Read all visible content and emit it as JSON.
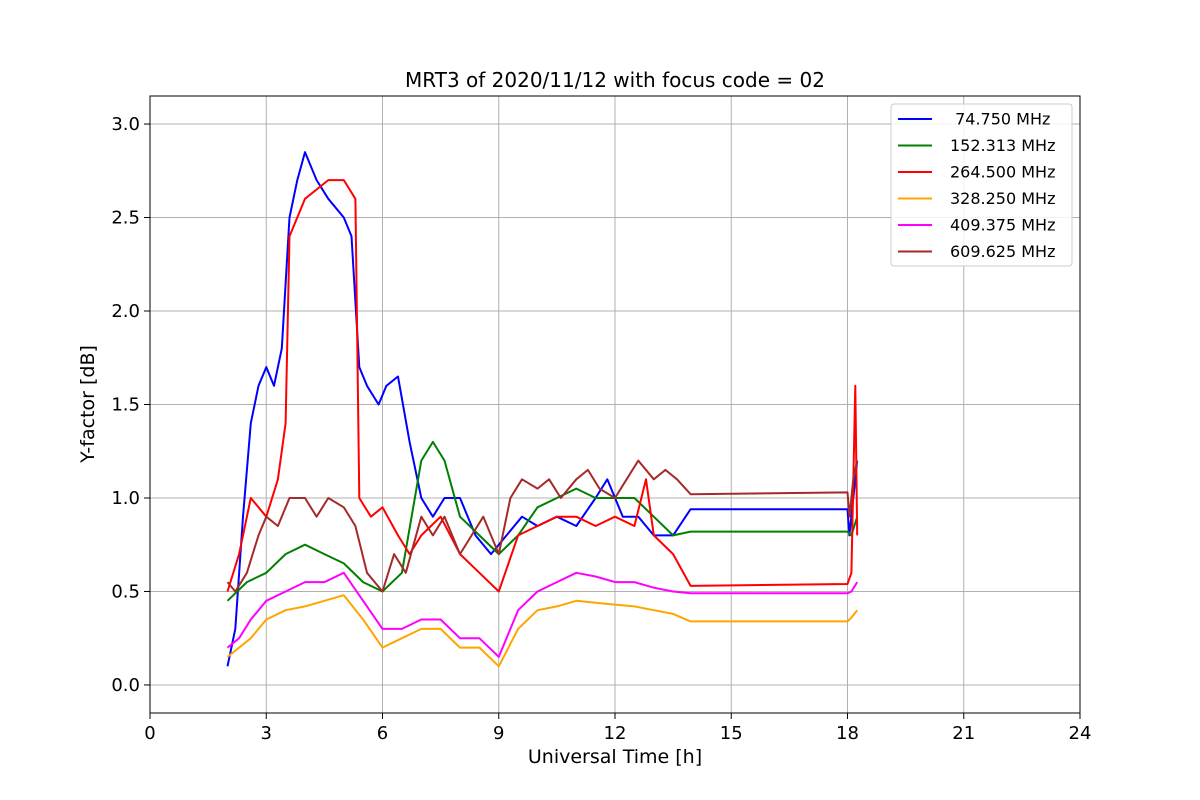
{
  "chart_data": {
    "type": "line",
    "title": "MRT3 of 2020/11/12 with focus code = 02",
    "xlabel": "Universal Time [h]",
    "ylabel": "Y-factor [dB]",
    "xlim": [
      0,
      24
    ],
    "ylim": [
      -0.15,
      3.15
    ],
    "xticks": [
      0,
      3,
      6,
      9,
      12,
      15,
      18,
      21,
      24
    ],
    "xtick_labels": [
      "0",
      "3",
      "6",
      "9",
      "12",
      "15",
      "18",
      "21",
      "24"
    ],
    "yticks": [
      0.0,
      0.5,
      1.0,
      1.5,
      2.0,
      2.5,
      3.0
    ],
    "ytick_labels": [
      "0.0",
      "0.5",
      "1.0",
      "1.5",
      "2.0",
      "2.5",
      "3.0"
    ],
    "grid": true,
    "legend_position": "top-right",
    "series": [
      {
        "name": " 74.750 MHz",
        "color": "#0000ff",
        "x": [
          2.0,
          2.2,
          2.4,
          2.6,
          2.8,
          3.0,
          3.2,
          3.4,
          3.6,
          3.8,
          4.0,
          4.3,
          4.6,
          5.0,
          5.2,
          5.4,
          5.6,
          5.9,
          6.1,
          6.4,
          6.7,
          7.0,
          7.3,
          7.6,
          8.0,
          8.4,
          8.8,
          9.2,
          9.6,
          10.0,
          10.5,
          11.0,
          11.5,
          11.8,
          12.2,
          12.6,
          13.0,
          13.5,
          13.95,
          18.0,
          18.05,
          18.15,
          18.25
        ],
        "values": [
          0.1,
          0.3,
          0.9,
          1.4,
          1.6,
          1.7,
          1.6,
          1.8,
          2.5,
          2.7,
          2.85,
          2.7,
          2.6,
          2.5,
          2.4,
          1.7,
          1.6,
          1.5,
          1.6,
          1.65,
          1.3,
          1.0,
          0.9,
          1.0,
          1.0,
          0.8,
          0.7,
          0.8,
          0.9,
          0.85,
          0.9,
          0.85,
          1.0,
          1.1,
          0.9,
          0.9,
          0.8,
          0.8,
          0.94,
          0.94,
          0.8,
          1.0,
          1.2
        ]
      },
      {
        "name": "152.313 MHz",
        "color": "#008000",
        "x": [
          2.0,
          2.5,
          3.0,
          3.5,
          4.0,
          4.5,
          5.0,
          5.5,
          6.0,
          6.5,
          7.0,
          7.3,
          7.6,
          8.0,
          8.5,
          9.0,
          9.5,
          10.0,
          10.5,
          11.0,
          11.5,
          12.0,
          12.5,
          13.0,
          13.5,
          13.95,
          18.0,
          18.1,
          18.25
        ],
        "values": [
          0.45,
          0.55,
          0.6,
          0.7,
          0.75,
          0.7,
          0.65,
          0.55,
          0.5,
          0.6,
          1.2,
          1.3,
          1.2,
          0.9,
          0.8,
          0.7,
          0.8,
          0.95,
          1.0,
          1.05,
          1.0,
          1.0,
          1.0,
          0.9,
          0.8,
          0.82,
          0.82,
          0.8,
          0.9
        ]
      },
      {
        "name": "264.500 MHz",
        "color": "#ff0000",
        "x": [
          2.0,
          2.3,
          2.6,
          3.0,
          3.3,
          3.5,
          3.6,
          3.8,
          4.0,
          4.3,
          4.6,
          5.0,
          5.3,
          5.4,
          5.7,
          6.0,
          6.4,
          6.7,
          7.0,
          7.5,
          8.0,
          8.5,
          9.0,
          9.5,
          10.0,
          10.5,
          11.0,
          11.5,
          12.0,
          12.5,
          12.8,
          13.0,
          13.5,
          13.95,
          18.0,
          18.1,
          18.2,
          18.25
        ],
        "values": [
          0.5,
          0.7,
          1.0,
          0.9,
          1.1,
          1.4,
          2.4,
          2.5,
          2.6,
          2.65,
          2.7,
          2.7,
          2.6,
          1.0,
          0.9,
          0.95,
          0.8,
          0.7,
          0.8,
          0.9,
          0.7,
          0.6,
          0.5,
          0.8,
          0.85,
          0.9,
          0.9,
          0.85,
          0.9,
          0.85,
          1.1,
          0.8,
          0.7,
          0.53,
          0.54,
          0.6,
          1.6,
          0.8
        ]
      },
      {
        "name": "328.250 MHz",
        "color": "#ffa500",
        "x": [
          2.0,
          2.3,
          2.6,
          3.0,
          3.5,
          4.0,
          4.5,
          5.0,
          5.5,
          6.0,
          6.5,
          7.0,
          7.5,
          8.0,
          8.5,
          9.0,
          9.5,
          10.0,
          10.5,
          11.0,
          11.5,
          12.0,
          12.5,
          13.0,
          13.5,
          13.95,
          18.0,
          18.1,
          18.25
        ],
        "values": [
          0.15,
          0.2,
          0.25,
          0.35,
          0.4,
          0.42,
          0.45,
          0.48,
          0.35,
          0.2,
          0.25,
          0.3,
          0.3,
          0.2,
          0.2,
          0.1,
          0.3,
          0.4,
          0.42,
          0.45,
          0.44,
          0.43,
          0.42,
          0.4,
          0.38,
          0.34,
          0.34,
          0.36,
          0.4
        ]
      },
      {
        "name": "409.375 MHz",
        "color": "#ff00ff",
        "x": [
          2.0,
          2.3,
          2.6,
          3.0,
          3.5,
          4.0,
          4.5,
          5.0,
          5.5,
          6.0,
          6.5,
          7.0,
          7.5,
          8.0,
          8.5,
          9.0,
          9.5,
          10.0,
          10.5,
          11.0,
          11.5,
          12.0,
          12.5,
          13.0,
          13.5,
          13.95,
          18.0,
          18.1,
          18.25
        ],
        "values": [
          0.2,
          0.25,
          0.35,
          0.45,
          0.5,
          0.55,
          0.55,
          0.6,
          0.45,
          0.3,
          0.3,
          0.35,
          0.35,
          0.25,
          0.25,
          0.15,
          0.4,
          0.5,
          0.55,
          0.6,
          0.58,
          0.55,
          0.55,
          0.52,
          0.5,
          0.49,
          0.49,
          0.5,
          0.55
        ]
      },
      {
        "name": "609.625 MHz",
        "color": "#a52a2a",
        "x": [
          2.0,
          2.2,
          2.5,
          2.8,
          3.0,
          3.3,
          3.6,
          4.0,
          4.3,
          4.6,
          5.0,
          5.3,
          5.6,
          6.0,
          6.3,
          6.6,
          7.0,
          7.3,
          7.6,
          8.0,
          8.3,
          8.6,
          9.0,
          9.3,
          9.6,
          10.0,
          10.3,
          10.6,
          11.0,
          11.3,
          11.6,
          12.0,
          12.3,
          12.6,
          13.0,
          13.3,
          13.6,
          13.95,
          18.0,
          18.05,
          18.15,
          18.25
        ],
        "values": [
          0.55,
          0.5,
          0.6,
          0.8,
          0.9,
          0.85,
          1.0,
          1.0,
          0.9,
          1.0,
          0.95,
          0.85,
          0.6,
          0.5,
          0.7,
          0.6,
          0.9,
          0.8,
          0.9,
          0.7,
          0.8,
          0.9,
          0.7,
          1.0,
          1.1,
          1.05,
          1.1,
          1.0,
          1.1,
          1.15,
          1.05,
          1.0,
          1.1,
          1.2,
          1.1,
          1.15,
          1.1,
          1.02,
          1.03,
          0.9,
          1.1,
          1.2
        ]
      }
    ]
  }
}
